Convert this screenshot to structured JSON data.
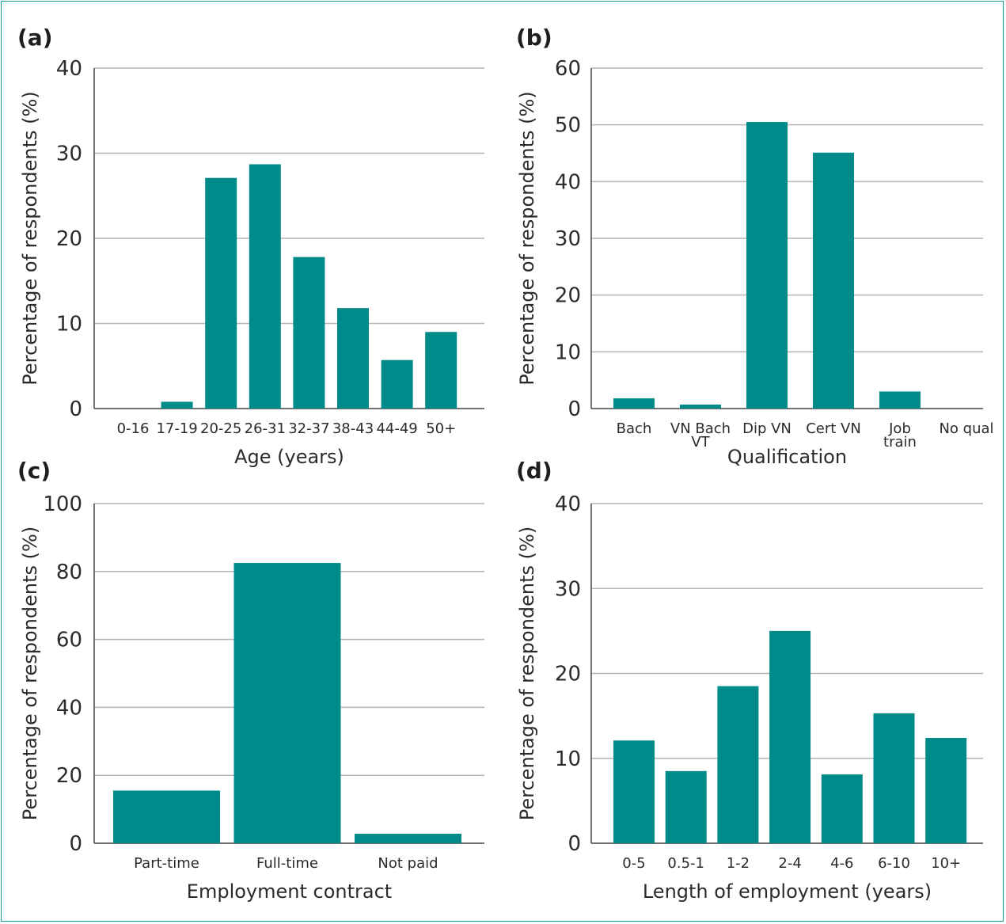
{
  "chart_data": [
    {
      "type": "bar",
      "panel_label": "(a)",
      "categories": [
        "0-16",
        "17-19",
        "20-25",
        "26-31",
        "32-37",
        "38-43",
        "44-49",
        "50+"
      ],
      "values": [
        0,
        0.8,
        27.1,
        28.7,
        17.8,
        11.8,
        5.7,
        9.0
      ],
      "xlabel": "Age (years)",
      "ylabel": "Percentage of respondents (%)",
      "ylim": [
        0,
        40
      ],
      "yticks": [
        0,
        10,
        20,
        30,
        40
      ],
      "grid": true,
      "color": "#008b8b"
    },
    {
      "type": "bar",
      "panel_label": "(b)",
      "categories": [
        "Bach",
        "VN Bach VT",
        "Dip VN",
        "Cert VN",
        "Job train",
        "No qual"
      ],
      "category_lines": [
        [
          "Bach"
        ],
        [
          "VN Bach",
          "VT"
        ],
        [
          "Dip VN"
        ],
        [
          "Cert VN"
        ],
        [
          "Job",
          "train"
        ],
        [
          "No qual"
        ]
      ],
      "values": [
        1.8,
        0.7,
        50.5,
        45.1,
        3.0,
        0
      ],
      "xlabel": "Qualification",
      "ylabel": "Percentage of respondents (%)",
      "ylim": [
        0,
        60
      ],
      "yticks": [
        0,
        10,
        20,
        30,
        40,
        50,
        60
      ],
      "grid": true,
      "color": "#008b8b"
    },
    {
      "type": "bar",
      "panel_label": "(c)",
      "categories": [
        "Part-time",
        "Full-time",
        "Not paid"
      ],
      "values": [
        15.5,
        82.5,
        2.8
      ],
      "xlabel": "Employment contract",
      "ylabel": "Percentage of respondents (%)",
      "ylim": [
        0,
        100
      ],
      "yticks": [
        0,
        20,
        40,
        60,
        80,
        100
      ],
      "grid": true,
      "color": "#008b8b"
    },
    {
      "type": "bar",
      "panel_label": "(d)",
      "categories": [
        "0-5",
        "0.5-1",
        "1-2",
        "2-4",
        "4-6",
        "6-10",
        "10+"
      ],
      "values": [
        12.1,
        8.5,
        18.5,
        25.0,
        8.1,
        15.3,
        12.4
      ],
      "xlabel": "Length of employment (years)",
      "ylabel": "Percentage of respondents (%)",
      "ylim": [
        0,
        40
      ],
      "yticks": [
        0,
        10,
        20,
        30,
        40
      ],
      "grid": true,
      "color": "#008b8b"
    }
  ]
}
